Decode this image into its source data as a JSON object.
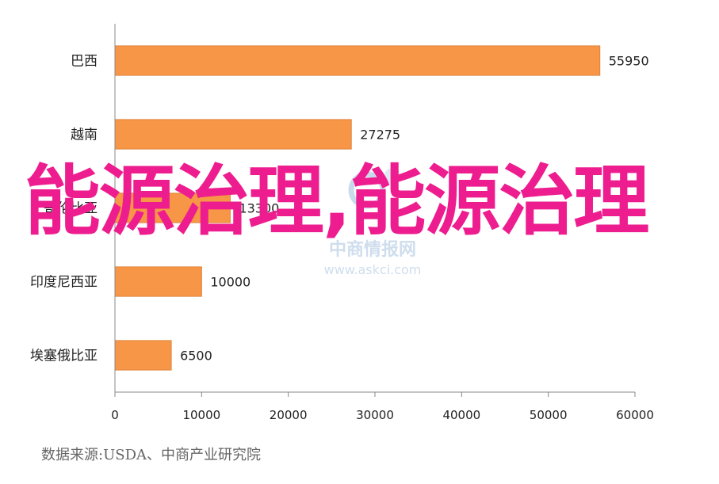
{
  "chart_data": {
    "type": "bar",
    "orientation": "horizontal",
    "categories": [
      "巴西",
      "越南",
      "哥伦比亚",
      "印度尼西亚",
      "埃塞俄比亚"
    ],
    "values": [
      55950,
      27275,
      13300,
      10000,
      6500
    ],
    "value_labels": [
      "55950",
      "27275",
      "13300",
      "10000",
      "6500"
    ],
    "xlim": [
      0,
      60000
    ],
    "xticks": [
      0,
      10000,
      20000,
      30000,
      40000,
      50000,
      60000
    ],
    "xtick_labels": [
      "0",
      "10000",
      "20000",
      "30000",
      "40000",
      "50000",
      "60000"
    ],
    "grid": false,
    "bar_color": "#f79646",
    "bar_edge_color": "#e0823a"
  },
  "source_note": "数据来源:USDA、中商产业研究院",
  "overlay_text": "能源治理,能源治理",
  "watermark": {
    "name": "中商产业研究院",
    "name_label": "中商情报网",
    "url": "www.askci.com",
    "logo": "askci-logo-icon"
  },
  "colors": {
    "overlay": "#ee1d8f",
    "axis": "#888888",
    "watermark": "#c9d9ea"
  }
}
